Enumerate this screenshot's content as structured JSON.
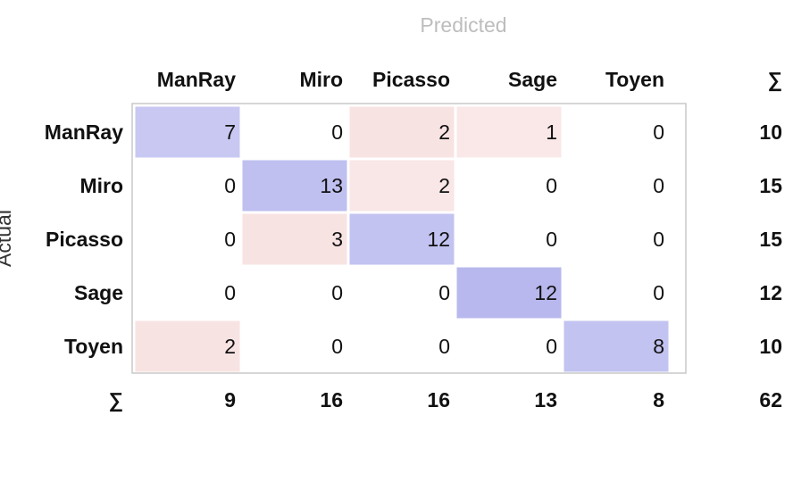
{
  "chart_data": {
    "type": "heatmap",
    "title": "Predicted",
    "ylabel": "Actual",
    "sum_symbol": "∑",
    "columns": [
      "ManRay",
      "Miro",
      "Picasso",
      "Sage",
      "Toyen"
    ],
    "rows": [
      "ManRay",
      "Miro",
      "Picasso",
      "Sage",
      "Toyen"
    ],
    "matrix": [
      [
        7,
        0,
        2,
        1,
        0
      ],
      [
        0,
        13,
        2,
        0,
        0
      ],
      [
        0,
        3,
        12,
        0,
        0
      ],
      [
        0,
        0,
        0,
        12,
        0
      ],
      [
        2,
        0,
        0,
        0,
        8
      ]
    ],
    "row_sums": [
      10,
      15,
      15,
      12,
      10
    ],
    "col_sums": [
      9,
      16,
      16,
      13,
      8
    ],
    "total": 62,
    "colors": {
      "correct": "#6b6bdc",
      "error": "#dc6b6b",
      "border": "#c8c8c8",
      "title": "#bdbdbd"
    }
  }
}
